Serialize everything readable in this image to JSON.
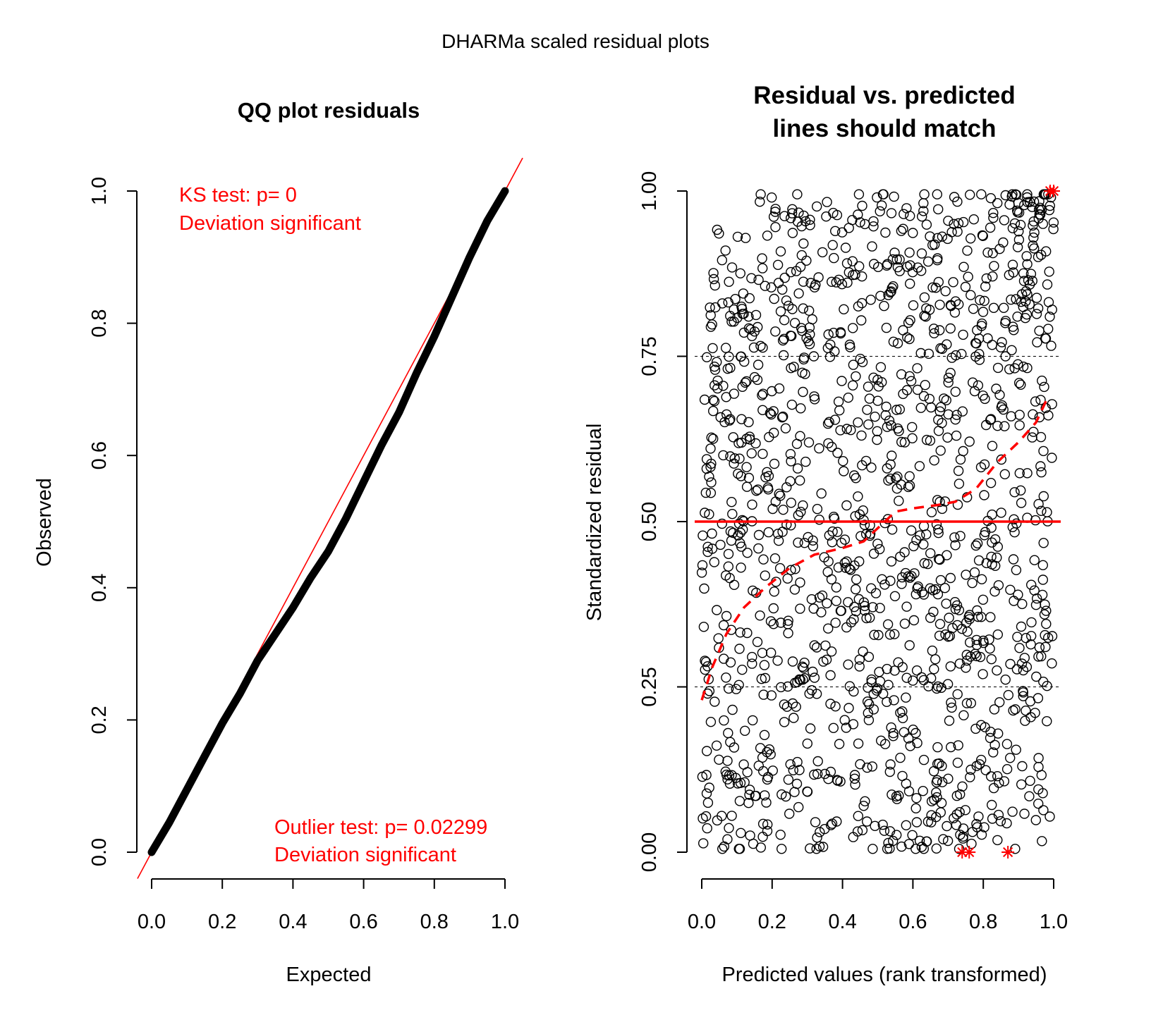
{
  "page_title": "DHARMa scaled residual plots",
  "colors": {
    "ink": "#000000",
    "accent": "#ff0000",
    "grid_dash": "#000000"
  },
  "chart_data": [
    {
      "type": "scatter",
      "id": "qq",
      "title": "QQ plot residuals",
      "xlabel": "Expected",
      "ylabel": "Observed",
      "xlim": [
        0,
        1
      ],
      "ylim": [
        0,
        1
      ],
      "xticks": [
        "0.0",
        "0.2",
        "0.4",
        "0.6",
        "0.8",
        "1.0"
      ],
      "yticks": [
        "0.0",
        "0.2",
        "0.4",
        "0.6",
        "0.8",
        "1.0"
      ],
      "reference_line": {
        "intercept": 0,
        "slope": 1
      },
      "curve": [
        [
          0,
          0
        ],
        [
          0.05,
          0.045
        ],
        [
          0.1,
          0.095
        ],
        [
          0.15,
          0.145
        ],
        [
          0.2,
          0.195
        ],
        [
          0.25,
          0.24
        ],
        [
          0.3,
          0.29
        ],
        [
          0.35,
          0.33
        ],
        [
          0.4,
          0.37
        ],
        [
          0.45,
          0.415
        ],
        [
          0.5,
          0.455
        ],
        [
          0.55,
          0.505
        ],
        [
          0.6,
          0.56
        ],
        [
          0.65,
          0.615
        ],
        [
          0.7,
          0.665
        ],
        [
          0.75,
          0.725
        ],
        [
          0.8,
          0.78
        ],
        [
          0.85,
          0.84
        ],
        [
          0.9,
          0.9
        ],
        [
          0.95,
          0.955
        ],
        [
          1,
          1
        ]
      ],
      "annotations": [
        {
          "text": "KS test: p= 0",
          "position": "top-left"
        },
        {
          "text": "Deviation  significant",
          "position": "top-left"
        },
        {
          "text": "Outlier test: p= 0.02299",
          "position": "bottom-right"
        },
        {
          "text": "Deviation  significant",
          "position": "bottom-right"
        }
      ]
    },
    {
      "type": "scatter",
      "id": "resid",
      "title": "Residual vs. predicted\nlines should match",
      "title_lines": [
        "Residual vs. predicted",
        "lines should match"
      ],
      "xlabel": "Predicted values (rank transformed)",
      "ylabel": "Standardized residual",
      "xlim": [
        0,
        1
      ],
      "ylim": [
        0,
        1
      ],
      "xticks": [
        "0.0",
        "0.2",
        "0.4",
        "0.6",
        "0.8",
        "1.0"
      ],
      "yticks": [
        "0.00",
        "0.25",
        "0.50",
        "0.75",
        "1.00"
      ],
      "hlines_dashed": [
        0.25,
        0.75
      ],
      "hline_solid": 0.5,
      "quantile_curve": [
        [
          0,
          0.23
        ],
        [
          0.03,
          0.28
        ],
        [
          0.07,
          0.33
        ],
        [
          0.12,
          0.37
        ],
        [
          0.18,
          0.4
        ],
        [
          0.25,
          0.43
        ],
        [
          0.32,
          0.45
        ],
        [
          0.4,
          0.46
        ],
        [
          0.46,
          0.47
        ],
        [
          0.5,
          0.49
        ],
        [
          0.55,
          0.515
        ],
        [
          0.6,
          0.52
        ],
        [
          0.67,
          0.525
        ],
        [
          0.72,
          0.53
        ],
        [
          0.78,
          0.55
        ],
        [
          0.84,
          0.59
        ],
        [
          0.9,
          0.62
        ],
        [
          0.95,
          0.65
        ],
        [
          0.985,
          0.69
        ]
      ],
      "outliers": [
        [
          0.74,
          0
        ],
        [
          0.76,
          0
        ],
        [
          0.87,
          0
        ],
        [
          0.99,
          1
        ],
        [
          1.0,
          1
        ]
      ],
      "points_generated_count": 1400
    }
  ]
}
